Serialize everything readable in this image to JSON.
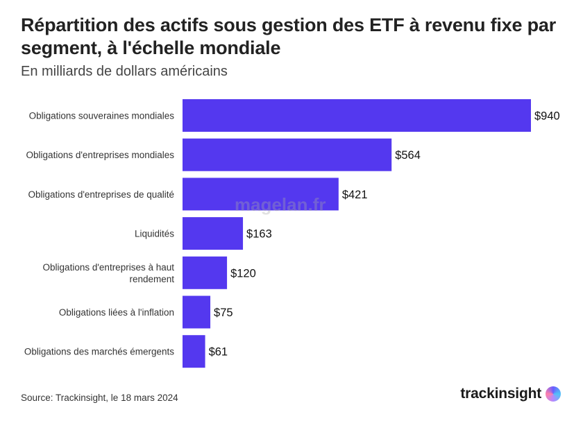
{
  "header": {
    "title": "Répartition des actifs sous gestion des ETF à revenu fixe par segment, à l'échelle mondiale",
    "subtitle": "En milliards de dollars américains"
  },
  "footer": {
    "source": "Source: Trackinsight, le 18 mars 2024",
    "brand": "trackinsight"
  },
  "watermark": "magelan.fr",
  "colors": {
    "bar": "#5438ef",
    "text": "#222222"
  },
  "chart_data": {
    "type": "bar",
    "orientation": "horizontal",
    "categories": [
      "Obligations souveraines mondiales",
      "Obligations d'entreprises mondiales",
      "Obligations d'entreprises de qualité",
      "Liquidités",
      "Obligations d'entreprises à haut rendement",
      "Obligations liées à l'inflation",
      "Obligations des marchés émergents"
    ],
    "values": [
      940,
      564,
      421,
      163,
      120,
      75,
      61
    ],
    "value_labels": [
      "$940",
      "$564",
      "$421",
      "$163",
      "$120",
      "$75",
      "$61"
    ],
    "xlim": [
      0,
      940
    ],
    "grid": false,
    "legend": "none"
  }
}
